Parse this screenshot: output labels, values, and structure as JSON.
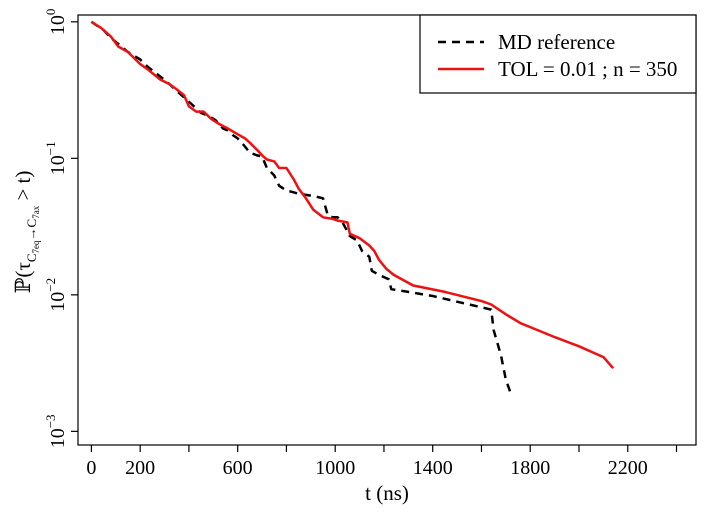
{
  "chart_data": {
    "type": "line",
    "title": "",
    "xlabel": "t (ns)",
    "ylabel": "P(τ C7eq→C7ax > t)",
    "ylabel_parts": {
      "prob": "ℙ",
      "open": "(τ",
      "sub_a": "C",
      "sub_a_sub": "7eq",
      "arrow": "→",
      "sub_b": "C",
      "sub_b_sub": "7ax",
      "close": " > t)"
    },
    "xlim": [
      -55,
      2480
    ],
    "ylim_log10": [
      -3.1,
      0.05
    ],
    "y_scale": "log",
    "xticks": [
      0,
      200,
      600,
      1000,
      1400,
      1800,
      2200
    ],
    "xtick_labels": [
      "0",
      "200",
      "600",
      "1000",
      "1400",
      "1800",
      "2200"
    ],
    "xticks_minor": [
      400,
      800,
      1200,
      1600,
      2000,
      2400
    ],
    "yticks_exp": [
      0,
      -1,
      -2,
      -3
    ],
    "ytick_labels": [
      {
        "base": "10",
        "exp": "0"
      },
      {
        "base": "10",
        "exp": "−1"
      },
      {
        "base": "10",
        "exp": "−2"
      },
      {
        "base": "10",
        "exp": "−3"
      }
    ],
    "legend_position": "top-right",
    "series": [
      {
        "name": "MD reference",
        "color": "#000000",
        "style": "dashed",
        "points": [
          [
            0,
            1.0
          ],
          [
            50,
            0.87
          ],
          [
            80,
            0.76
          ],
          [
            110,
            0.69
          ],
          [
            150,
            0.6
          ],
          [
            200,
            0.53
          ],
          [
            230,
            0.47
          ],
          [
            280,
            0.4
          ],
          [
            320,
            0.35
          ],
          [
            370,
            0.29
          ],
          [
            410,
            0.25
          ],
          [
            450,
            0.215
          ],
          [
            480,
            0.205
          ],
          [
            510,
            0.19
          ],
          [
            540,
            0.165
          ],
          [
            560,
            0.16
          ],
          [
            580,
            0.148
          ],
          [
            600,
            0.14
          ],
          [
            620,
            0.128
          ],
          [
            650,
            0.11
          ],
          [
            680,
            0.105
          ],
          [
            700,
            0.103
          ],
          [
            720,
            0.085
          ],
          [
            750,
            0.075
          ],
          [
            770,
            0.063
          ],
          [
            800,
            0.058
          ],
          [
            820,
            0.057
          ],
          [
            850,
            0.055
          ],
          [
            880,
            0.054
          ],
          [
            910,
            0.053
          ],
          [
            930,
            0.052
          ],
          [
            950,
            0.051
          ],
          [
            970,
            0.038
          ],
          [
            990,
            0.037
          ],
          [
            1010,
            0.037
          ],
          [
            1030,
            0.034
          ],
          [
            1060,
            0.027
          ],
          [
            1090,
            0.025
          ],
          [
            1110,
            0.021
          ],
          [
            1140,
            0.019
          ],
          [
            1150,
            0.015
          ],
          [
            1180,
            0.014
          ],
          [
            1220,
            0.013
          ],
          [
            1230,
            0.011
          ],
          [
            1300,
            0.0105
          ],
          [
            1400,
            0.0098
          ],
          [
            1500,
            0.0089
          ],
          [
            1600,
            0.0081
          ],
          [
            1640,
            0.0078
          ],
          [
            1650,
            0.0055
          ],
          [
            1680,
            0.0036
          ],
          [
            1700,
            0.0024
          ],
          [
            1720,
            0.0019
          ]
        ]
      },
      {
        "name": "TOL = 0.01 ; n = 350",
        "color": "#ee1111",
        "style": "solid",
        "points": [
          [
            0,
            1.0
          ],
          [
            40,
            0.9
          ],
          [
            80,
            0.78
          ],
          [
            110,
            0.66
          ],
          [
            150,
            0.6
          ],
          [
            200,
            0.49
          ],
          [
            230,
            0.45
          ],
          [
            280,
            0.38
          ],
          [
            320,
            0.35
          ],
          [
            350,
            0.32
          ],
          [
            380,
            0.29
          ],
          [
            400,
            0.24
          ],
          [
            430,
            0.22
          ],
          [
            460,
            0.22
          ],
          [
            490,
            0.195
          ],
          [
            520,
            0.18
          ],
          [
            560,
            0.165
          ],
          [
            600,
            0.15
          ],
          [
            630,
            0.14
          ],
          [
            650,
            0.13
          ],
          [
            680,
            0.115
          ],
          [
            700,
            0.105
          ],
          [
            720,
            0.098
          ],
          [
            750,
            0.095
          ],
          [
            770,
            0.085
          ],
          [
            800,
            0.085
          ],
          [
            830,
            0.07
          ],
          [
            850,
            0.06
          ],
          [
            880,
            0.051
          ],
          [
            910,
            0.042
          ],
          [
            950,
            0.037
          ],
          [
            990,
            0.036
          ],
          [
            1010,
            0.035
          ],
          [
            1050,
            0.034
          ],
          [
            1060,
            0.028
          ],
          [
            1100,
            0.026
          ],
          [
            1140,
            0.023
          ],
          [
            1160,
            0.021
          ],
          [
            1180,
            0.018
          ],
          [
            1210,
            0.0155
          ],
          [
            1240,
            0.014
          ],
          [
            1320,
            0.0117
          ],
          [
            1450,
            0.0105
          ],
          [
            1600,
            0.009
          ],
          [
            1640,
            0.0085
          ],
          [
            1700,
            0.0072
          ],
          [
            1760,
            0.0062
          ],
          [
            1800,
            0.0058
          ],
          [
            1900,
            0.0049
          ],
          [
            2000,
            0.0042
          ],
          [
            2100,
            0.0035
          ],
          [
            2140,
            0.0029
          ]
        ]
      }
    ]
  }
}
